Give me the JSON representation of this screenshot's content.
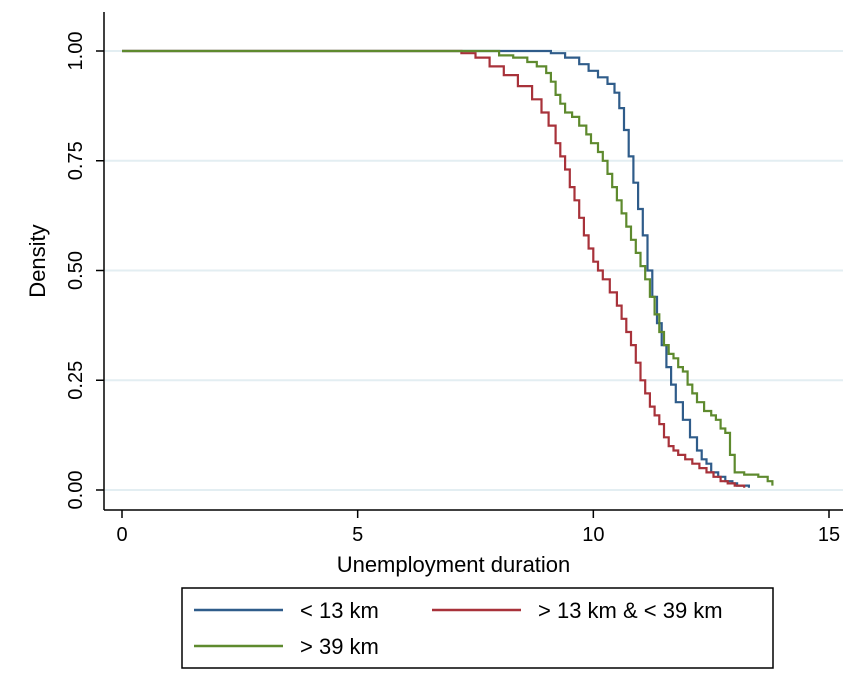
{
  "chart_data": {
    "type": "line",
    "title": "",
    "xlabel": "Unemployment duration",
    "ylabel": "Density",
    "xlim": [
      0,
      15
    ],
    "ylim": [
      0,
      1
    ],
    "x_ticks": [
      "0",
      "5",
      "10",
      "15"
    ],
    "y_ticks": [
      "0.00",
      "0.25",
      "0.50",
      "0.75",
      "1.00"
    ],
    "grid": "horizontal",
    "legend": "bottom",
    "series": [
      {
        "name": "< 13 km",
        "color": "#2f5c8a",
        "points": [
          [
            0,
            1.0
          ],
          [
            8.9,
            1.0
          ],
          [
            9.1,
            0.995
          ],
          [
            9.4,
            0.985
          ],
          [
            9.7,
            0.97
          ],
          [
            9.9,
            0.955
          ],
          [
            10.1,
            0.94
          ],
          [
            10.3,
            0.925
          ],
          [
            10.45,
            0.905
          ],
          [
            10.55,
            0.87
          ],
          [
            10.65,
            0.82
          ],
          [
            10.75,
            0.76
          ],
          [
            10.85,
            0.7
          ],
          [
            10.95,
            0.64
          ],
          [
            11.05,
            0.58
          ],
          [
            11.15,
            0.5
          ],
          [
            11.25,
            0.44
          ],
          [
            11.35,
            0.38
          ],
          [
            11.45,
            0.33
          ],
          [
            11.55,
            0.28
          ],
          [
            11.65,
            0.24
          ],
          [
            11.75,
            0.2
          ],
          [
            11.9,
            0.16
          ],
          [
            12.05,
            0.12
          ],
          [
            12.2,
            0.09
          ],
          [
            12.3,
            0.07
          ],
          [
            12.4,
            0.06
          ],
          [
            12.5,
            0.04
          ],
          [
            12.65,
            0.03
          ],
          [
            12.8,
            0.02
          ],
          [
            12.95,
            0.015
          ],
          [
            13.05,
            0.01
          ],
          [
            13.3,
            0.005
          ]
        ]
      },
      {
        "name": "> 13 km & < 39 km",
        "color": "#a8323a",
        "points": [
          [
            0,
            1.0
          ],
          [
            6.9,
            1.0
          ],
          [
            7.2,
            0.995
          ],
          [
            7.5,
            0.985
          ],
          [
            7.8,
            0.965
          ],
          [
            8.1,
            0.945
          ],
          [
            8.4,
            0.92
          ],
          [
            8.7,
            0.89
          ],
          [
            8.9,
            0.86
          ],
          [
            9.05,
            0.83
          ],
          [
            9.2,
            0.79
          ],
          [
            9.3,
            0.76
          ],
          [
            9.4,
            0.73
          ],
          [
            9.5,
            0.69
          ],
          [
            9.6,
            0.66
          ],
          [
            9.7,
            0.62
          ],
          [
            9.8,
            0.58
          ],
          [
            9.9,
            0.55
          ],
          [
            10.0,
            0.52
          ],
          [
            10.1,
            0.5
          ],
          [
            10.2,
            0.48
          ],
          [
            10.35,
            0.45
          ],
          [
            10.5,
            0.42
          ],
          [
            10.6,
            0.39
          ],
          [
            10.7,
            0.36
          ],
          [
            10.8,
            0.33
          ],
          [
            10.9,
            0.29
          ],
          [
            11.0,
            0.25
          ],
          [
            11.1,
            0.22
          ],
          [
            11.2,
            0.19
          ],
          [
            11.3,
            0.17
          ],
          [
            11.4,
            0.15
          ],
          [
            11.5,
            0.12
          ],
          [
            11.6,
            0.1
          ],
          [
            11.7,
            0.09
          ],
          [
            11.8,
            0.08
          ],
          [
            11.95,
            0.07
          ],
          [
            12.1,
            0.06
          ],
          [
            12.25,
            0.05
          ],
          [
            12.4,
            0.04
          ],
          [
            12.55,
            0.03
          ],
          [
            12.7,
            0.02
          ],
          [
            12.85,
            0.015
          ],
          [
            13.0,
            0.01
          ],
          [
            13.2,
            0.005
          ]
        ]
      },
      {
        "name": "> 39 km",
        "color": "#5e8a2e",
        "points": [
          [
            0,
            1.0
          ],
          [
            7.7,
            1.0
          ],
          [
            8.0,
            0.99
          ],
          [
            8.3,
            0.985
          ],
          [
            8.6,
            0.975
          ],
          [
            8.8,
            0.965
          ],
          [
            9.0,
            0.95
          ],
          [
            9.1,
            0.93
          ],
          [
            9.2,
            0.9
          ],
          [
            9.3,
            0.88
          ],
          [
            9.4,
            0.86
          ],
          [
            9.55,
            0.85
          ],
          [
            9.7,
            0.83
          ],
          [
            9.85,
            0.81
          ],
          [
            9.95,
            0.79
          ],
          [
            10.1,
            0.77
          ],
          [
            10.2,
            0.75
          ],
          [
            10.3,
            0.72
          ],
          [
            10.4,
            0.69
          ],
          [
            10.5,
            0.66
          ],
          [
            10.6,
            0.63
          ],
          [
            10.7,
            0.6
          ],
          [
            10.8,
            0.57
          ],
          [
            10.9,
            0.54
          ],
          [
            11.0,
            0.51
          ],
          [
            11.1,
            0.48
          ],
          [
            11.2,
            0.44
          ],
          [
            11.3,
            0.4
          ],
          [
            11.4,
            0.36
          ],
          [
            11.5,
            0.33
          ],
          [
            11.6,
            0.31
          ],
          [
            11.7,
            0.3
          ],
          [
            11.8,
            0.28
          ],
          [
            11.9,
            0.27
          ],
          [
            12.0,
            0.24
          ],
          [
            12.1,
            0.22
          ],
          [
            12.2,
            0.2
          ],
          [
            12.35,
            0.18
          ],
          [
            12.5,
            0.17
          ],
          [
            12.6,
            0.16
          ],
          [
            12.7,
            0.14
          ],
          [
            12.8,
            0.13
          ],
          [
            12.9,
            0.08
          ],
          [
            13.0,
            0.04
          ],
          [
            13.2,
            0.035
          ],
          [
            13.5,
            0.03
          ],
          [
            13.7,
            0.02
          ],
          [
            13.8,
            0.01
          ]
        ]
      }
    ]
  }
}
